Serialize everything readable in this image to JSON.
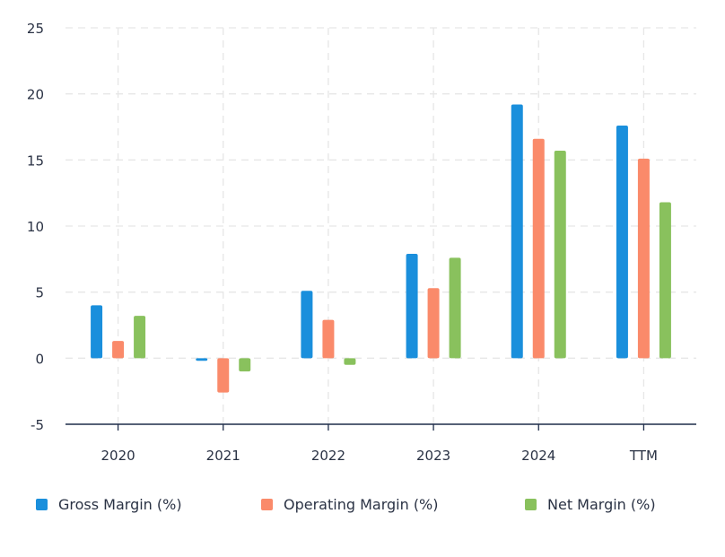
{
  "chart_data": {
    "type": "bar",
    "categories": [
      "2020",
      "2021",
      "2022",
      "2023",
      "2024",
      "TTM"
    ],
    "series": [
      {
        "name": "Gross Margin (%)",
        "color": "#1a8fdc",
        "values": [
          4.0,
          -0.2,
          5.1,
          7.9,
          19.2,
          17.6
        ]
      },
      {
        "name": "Operating Margin (%)",
        "color": "#fa8a6a",
        "values": [
          1.3,
          -2.6,
          2.9,
          5.3,
          16.6,
          15.1
        ]
      },
      {
        "name": "Net Margin (%)",
        "color": "#89c15d",
        "values": [
          3.2,
          -1.0,
          -0.5,
          7.6,
          15.7,
          11.8
        ]
      }
    ],
    "yticks": [
      "25",
      "20",
      "15",
      "10",
      "5",
      "0",
      "-5"
    ],
    "ylim": [
      -5,
      25
    ],
    "grid": true,
    "legend_position": "bottom"
  }
}
